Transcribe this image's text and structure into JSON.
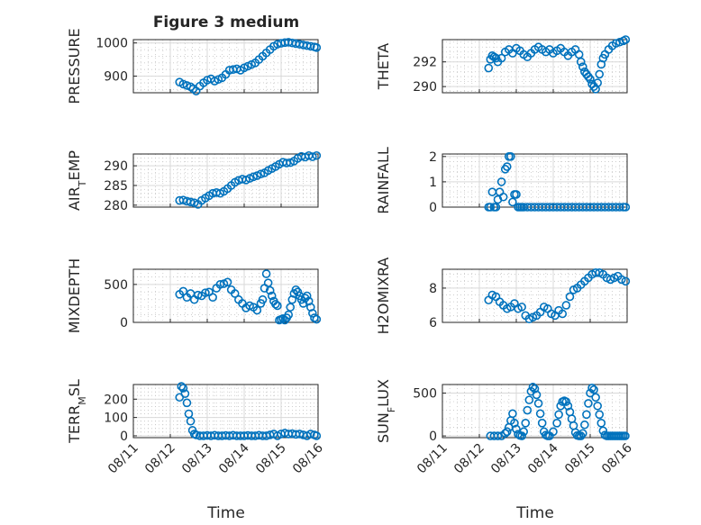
{
  "figure": {
    "title": "Figure 3 medium",
    "marker_color": "#0072BD",
    "x_axis": {
      "label": "Time",
      "ticks": [
        "08/11",
        "08/12",
        "08/13",
        "08/14",
        "08/15",
        "08/16"
      ],
      "range": [
        "08/11",
        "08/16"
      ]
    }
  },
  "chart_data": [
    {
      "type": "scatter",
      "ylabel": "PRESSURE",
      "ylim": [
        850,
        1010
      ],
      "yticks": [
        900,
        1000
      ],
      "grid": true,
      "x": [
        1.25,
        1.35,
        1.45,
        1.55,
        1.62,
        1.7,
        1.8,
        1.9,
        2.0,
        2.1,
        2.2,
        2.3,
        2.4,
        2.5,
        2.6,
        2.7,
        2.8,
        2.9,
        3.0,
        3.1,
        3.2,
        3.3,
        3.4,
        3.5,
        3.6,
        3.7,
        3.8,
        3.9,
        4.0,
        4.1,
        4.2,
        4.3,
        4.4,
        4.5,
        4.6,
        4.7,
        4.8,
        4.9,
        4.96
      ],
      "y": [
        882,
        876,
        872,
        868,
        862,
        855,
        870,
        880,
        888,
        892,
        885,
        890,
        895,
        905,
        918,
        920,
        922,
        918,
        925,
        930,
        935,
        940,
        950,
        960,
        970,
        980,
        990,
        996,
        999,
        1001,
        1002,
        1000,
        998,
        996,
        994,
        992,
        990,
        988,
        986
      ]
    },
    {
      "type": "scatter",
      "ylabel": "THETA",
      "ylim": [
        289.5,
        293.8
      ],
      "yticks": [
        290,
        292
      ],
      "grid": true,
      "x": [
        1.25,
        1.3,
        1.35,
        1.4,
        1.45,
        1.5,
        1.6,
        1.7,
        1.8,
        1.9,
        2.0,
        2.1,
        2.2,
        2.3,
        2.4,
        2.5,
        2.6,
        2.7,
        2.8,
        2.9,
        3.0,
        3.1,
        3.2,
        3.3,
        3.4,
        3.5,
        3.6,
        3.7,
        3.75,
        3.8,
        3.85,
        3.9,
        3.95,
        4.0,
        4.05,
        4.1,
        4.15,
        4.2,
        4.25,
        4.3,
        4.35,
        4.4,
        4.5,
        4.6,
        4.7,
        4.8,
        4.9,
        4.96
      ],
      "y": [
        291.5,
        292.2,
        292.5,
        292.4,
        292.3,
        292.0,
        292.3,
        292.8,
        293.0,
        292.7,
        293.1,
        292.9,
        292.6,
        292.4,
        292.7,
        293.0,
        293.2,
        293.0,
        292.8,
        293.0,
        292.7,
        292.9,
        293.1,
        292.8,
        292.5,
        292.8,
        293.0,
        292.6,
        292.0,
        291.6,
        291.2,
        291.0,
        290.8,
        290.6,
        290.2,
        290.0,
        289.8,
        290.3,
        291.0,
        291.8,
        292.3,
        292.6,
        293.0,
        293.3,
        293.5,
        293.6,
        293.7,
        293.8
      ]
    },
    {
      "type": "scatter",
      "ylabel": "AIR_TEMP",
      "ylim": [
        279.5,
        293
      ],
      "yticks": [
        280,
        285,
        290
      ],
      "grid": true,
      "x": [
        1.25,
        1.35,
        1.45,
        1.55,
        1.65,
        1.75,
        1.85,
        1.95,
        2.05,
        2.15,
        2.25,
        2.35,
        2.45,
        2.55,
        2.65,
        2.75,
        2.85,
        2.95,
        3.05,
        3.15,
        3.25,
        3.35,
        3.45,
        3.55,
        3.65,
        3.75,
        3.85,
        3.95,
        4.05,
        4.15,
        4.25,
        4.35,
        4.45,
        4.55,
        4.65,
        4.75,
        4.85,
        4.96
      ],
      "y": [
        281.2,
        281.3,
        281.0,
        280.8,
        280.6,
        280.2,
        281.2,
        281.8,
        282.4,
        283.0,
        283.2,
        283.0,
        283.5,
        284.2,
        285.0,
        285.8,
        286.3,
        286.6,
        286.4,
        286.8,
        287.2,
        287.5,
        287.9,
        288.2,
        288.8,
        289.3,
        289.8,
        290.4,
        290.9,
        290.7,
        290.8,
        291.2,
        291.9,
        292.4,
        292.2,
        292.6,
        292.3,
        292.6
      ]
    },
    {
      "type": "scatter",
      "ylabel": "RAINFALL",
      "ylim": [
        0,
        2.1
      ],
      "yticks": [
        0,
        1,
        2
      ],
      "grid": true,
      "x": [
        1.25,
        1.3,
        1.35,
        1.4,
        1.45,
        1.5,
        1.55,
        1.6,
        1.65,
        1.7,
        1.75,
        1.8,
        1.85,
        1.9,
        1.95,
        2.0,
        2.05,
        2.1,
        2.15,
        2.2,
        2.3,
        2.4,
        2.5,
        2.6,
        2.7,
        2.8,
        2.9,
        3.0,
        3.1,
        3.2,
        3.3,
        3.4,
        3.5,
        3.6,
        3.7,
        3.8,
        3.9,
        4.0,
        4.1,
        4.2,
        4.3,
        4.4,
        4.5,
        4.6,
        4.7,
        4.8,
        4.9,
        4.96
      ],
      "y": [
        0,
        0,
        0.6,
        0,
        0,
        0.3,
        0.6,
        1.0,
        0.4,
        1.5,
        1.6,
        2.0,
        2.0,
        0.2,
        0.5,
        0.5,
        0,
        0,
        0,
        0,
        0,
        0,
        0,
        0,
        0,
        0,
        0,
        0,
        0,
        0,
        0,
        0,
        0,
        0,
        0,
        0,
        0,
        0,
        0,
        0,
        0,
        0,
        0,
        0,
        0,
        0,
        0,
        0
      ]
    },
    {
      "type": "scatter",
      "ylabel": "MIXDEPTH",
      "ylim": [
        0,
        700
      ],
      "yticks": [
        0,
        500
      ],
      "grid": true,
      "x": [
        1.25,
        1.35,
        1.45,
        1.55,
        1.65,
        1.75,
        1.85,
        1.95,
        2.05,
        2.15,
        2.25,
        2.35,
        2.45,
        2.55,
        2.65,
        2.75,
        2.85,
        2.95,
        3.05,
        3.15,
        3.25,
        3.35,
        3.45,
        3.5,
        3.55,
        3.6,
        3.65,
        3.7,
        3.75,
        3.8,
        3.85,
        3.9,
        3.95,
        4.0,
        4.05,
        4.1,
        4.15,
        4.2,
        4.25,
        4.3,
        4.35,
        4.4,
        4.45,
        4.5,
        4.55,
        4.6,
        4.65,
        4.7,
        4.75,
        4.8,
        4.85,
        4.9,
        4.96
      ],
      "y": [
        370,
        410,
        330,
        380,
        300,
        360,
        350,
        390,
        400,
        330,
        450,
        500,
        510,
        530,
        430,
        380,
        300,
        250,
        190,
        220,
        200,
        160,
        250,
        300,
        450,
        640,
        520,
        420,
        350,
        280,
        240,
        220,
        30,
        40,
        50,
        30,
        60,
        100,
        200,
        300,
        380,
        430,
        400,
        350,
        300,
        250,
        320,
        350,
        280,
        200,
        120,
        60,
        40
      ]
    },
    {
      "type": "scatter",
      "ylabel": "H2OMIXRA",
      "ylim": [
        6,
        9.1
      ],
      "yticks": [
        6,
        8
      ],
      "grid": true,
      "x": [
        1.25,
        1.35,
        1.45,
        1.55,
        1.65,
        1.75,
        1.85,
        1.95,
        2.05,
        2.15,
        2.25,
        2.35,
        2.45,
        2.55,
        2.65,
        2.75,
        2.85,
        2.95,
        3.05,
        3.15,
        3.25,
        3.35,
        3.45,
        3.55,
        3.65,
        3.75,
        3.85,
        3.95,
        4.05,
        4.15,
        4.25,
        4.35,
        4.45,
        4.55,
        4.65,
        4.75,
        4.85,
        4.96
      ],
      "y": [
        7.3,
        7.6,
        7.5,
        7.2,
        7.0,
        6.8,
        6.9,
        7.1,
        6.8,
        6.9,
        6.4,
        6.2,
        6.3,
        6.4,
        6.6,
        6.9,
        6.8,
        6.5,
        6.4,
        6.7,
        6.5,
        7.0,
        7.5,
        7.9,
        8.0,
        8.2,
        8.4,
        8.6,
        8.8,
        8.9,
        8.9,
        8.8,
        8.6,
        8.5,
        8.6,
        8.7,
        8.5,
        8.4
      ]
    },
    {
      "type": "scatter",
      "ylabel": "TERR_MSL",
      "ylim": [
        -10,
        280
      ],
      "yticks": [
        0,
        100,
        200
      ],
      "grid": true,
      "x": [
        1.25,
        1.3,
        1.35,
        1.4,
        1.45,
        1.5,
        1.55,
        1.6,
        1.65,
        1.7,
        1.8,
        1.9,
        2.0,
        2.1,
        2.2,
        2.3,
        2.4,
        2.5,
        2.6,
        2.7,
        2.8,
        2.9,
        3.0,
        3.1,
        3.2,
        3.3,
        3.4,
        3.5,
        3.6,
        3.7,
        3.8,
        3.9,
        4.0,
        4.1,
        4.2,
        4.3,
        4.4,
        4.5,
        4.6,
        4.7,
        4.8,
        4.9,
        4.96
      ],
      "y": [
        210,
        270,
        260,
        230,
        180,
        120,
        80,
        30,
        10,
        5,
        0,
        0,
        2,
        0,
        3,
        0,
        0,
        2,
        0,
        3,
        0,
        0,
        0,
        2,
        0,
        0,
        3,
        0,
        0,
        5,
        10,
        0,
        10,
        15,
        10,
        12,
        8,
        10,
        5,
        0,
        10,
        5,
        0
      ]
    },
    {
      "type": "scatter",
      "ylabel": "SUN_FLUX",
      "ylim": [
        -20,
        600
      ],
      "yticks": [
        0,
        500
      ],
      "grid": true,
      "x": [
        1.3,
        1.4,
        1.5,
        1.6,
        1.7,
        1.75,
        1.8,
        1.85,
        1.9,
        1.95,
        2.0,
        2.05,
        2.1,
        2.15,
        2.2,
        2.25,
        2.3,
        2.35,
        2.4,
        2.45,
        2.5,
        2.55,
        2.6,
        2.65,
        2.7,
        2.75,
        2.8,
        2.85,
        2.9,
        3.0,
        3.1,
        3.15,
        3.2,
        3.25,
        3.3,
        3.35,
        3.4,
        3.45,
        3.5,
        3.55,
        3.6,
        3.65,
        3.7,
        3.75,
        3.8,
        3.85,
        3.9,
        3.95,
        4.0,
        4.05,
        4.1,
        4.15,
        4.2,
        4.25,
        4.3,
        4.35,
        4.4,
        4.45,
        4.5,
        4.55,
        4.6,
        4.65,
        4.7,
        4.75,
        4.8,
        4.85,
        4.9,
        4.95
      ],
      "y": [
        0,
        0,
        0,
        0,
        30,
        50,
        100,
        180,
        260,
        150,
        80,
        20,
        5,
        0,
        50,
        150,
        300,
        420,
        520,
        570,
        550,
        480,
        380,
        260,
        150,
        50,
        10,
        0,
        0,
        50,
        150,
        250,
        350,
        400,
        410,
        400,
        350,
        280,
        200,
        120,
        40,
        5,
        0,
        0,
        30,
        130,
        250,
        380,
        500,
        560,
        540,
        450,
        350,
        250,
        150,
        60,
        10,
        0,
        0,
        0,
        0,
        0,
        0,
        0,
        0,
        0,
        0,
        0
      ]
    }
  ]
}
